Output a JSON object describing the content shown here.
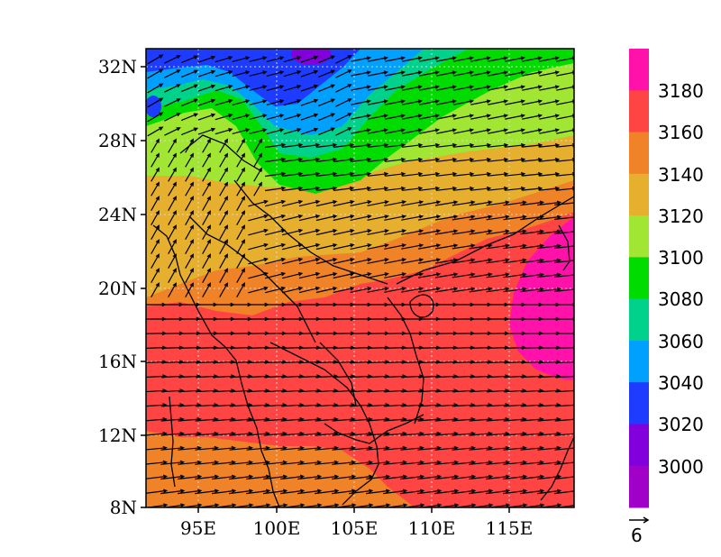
{
  "map": {
    "lat_labels": [
      "32N",
      "28N",
      "24N",
      "20N",
      "16N",
      "12N",
      "8N"
    ],
    "lon_labels": [
      "95E",
      "100E",
      "105E",
      "110E",
      "115E"
    ],
    "colorbar": {
      "labels": [
        "3180",
        "3160",
        "3140",
        "3120",
        "3100",
        "3080",
        "3060",
        "3040",
        "3020",
        "3000"
      ],
      "colors": [
        "#ff11aa",
        "#ff4444",
        "#f08228",
        "#e6af2d",
        "#a0e632",
        "#00dc00",
        "#00d28c",
        "#00a0ff",
        "#1e3cff",
        "#8200dc",
        "#a000c8"
      ]
    },
    "reference_vector": "6",
    "colors": {
      "land_outline": "#000000",
      "arrow": "#000000",
      "grid": "#d8d8d8"
    }
  }
}
